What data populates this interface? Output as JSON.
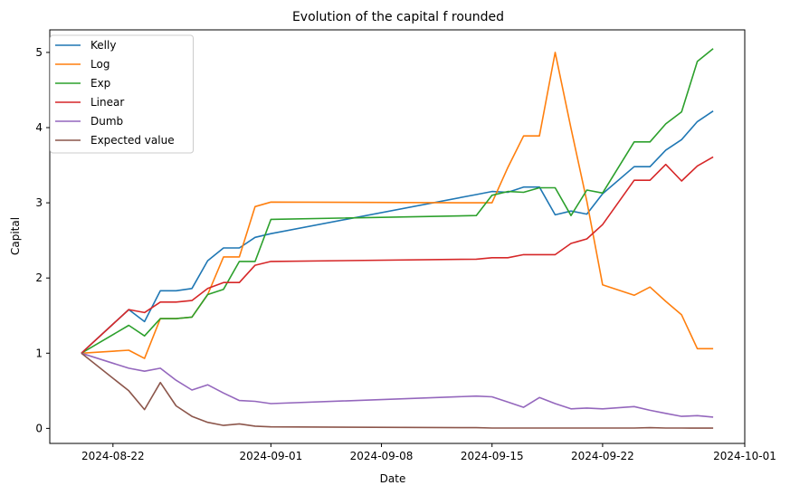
{
  "chart_data": {
    "type": "line",
    "title": "Evolution of the capital f rounded",
    "xlabel": "Date",
    "ylabel": "Capital",
    "xlim": [
      "2024-08-18",
      "2024-10-01"
    ],
    "ylim": [
      -0.2,
      5.3
    ],
    "x_ticks": [
      "2024-08-22",
      "2024-09-01",
      "2024-09-08",
      "2024-09-15",
      "2024-09-22",
      "2024-10-01"
    ],
    "y_ticks": [
      0,
      1,
      2,
      3,
      4,
      5
    ],
    "grid": false,
    "legend": "top-left",
    "x": [
      "2024-08-20",
      "2024-08-23",
      "2024-08-24",
      "2024-08-25",
      "2024-08-26",
      "2024-08-27",
      "2024-08-28",
      "2024-08-29",
      "2024-08-30",
      "2024-08-31",
      "2024-09-01",
      "2024-09-14",
      "2024-09-15",
      "2024-09-16",
      "2024-09-17",
      "2024-09-18",
      "2024-09-19",
      "2024-09-20",
      "2024-09-21",
      "2024-09-22",
      "2024-09-24",
      "2024-09-25",
      "2024-09-26",
      "2024-09-27",
      "2024-09-28",
      "2024-09-29"
    ],
    "series": [
      {
        "name": "Kelly",
        "color": "#1f77b4",
        "values": [
          1.0,
          1.58,
          1.42,
          1.83,
          1.83,
          1.86,
          2.23,
          2.4,
          2.4,
          2.54,
          2.59,
          3.11,
          3.15,
          3.14,
          3.21,
          3.21,
          2.84,
          2.89,
          2.85,
          3.12,
          3.48,
          3.48,
          3.7,
          3.84,
          4.08,
          4.22
        ]
      },
      {
        "name": "Log",
        "color": "#ff7f0e",
        "values": [
          1.0,
          1.04,
          0.93,
          1.46,
          1.46,
          1.48,
          1.78,
          2.28,
          2.28,
          2.95,
          3.01,
          3.0,
          3.0,
          3.47,
          3.89,
          3.89,
          5.0,
          3.99,
          3.02,
          1.91,
          1.77,
          1.88,
          1.69,
          1.51,
          1.06,
          1.06
        ]
      },
      {
        "name": "Exp",
        "color": "#2ca02c",
        "values": [
          1.0,
          1.37,
          1.23,
          1.46,
          1.46,
          1.48,
          1.78,
          1.85,
          2.22,
          2.22,
          2.78,
          2.83,
          3.1,
          3.15,
          3.14,
          3.2,
          3.2,
          2.83,
          3.17,
          3.13,
          3.81,
          3.81,
          4.05,
          4.21,
          4.88,
          5.05
        ]
      },
      {
        "name": "Linear",
        "color": "#d62728",
        "values": [
          1.0,
          1.58,
          1.54,
          1.68,
          1.68,
          1.7,
          1.86,
          1.94,
          1.94,
          2.17,
          2.22,
          2.25,
          2.27,
          2.27,
          2.31,
          2.31,
          2.31,
          2.46,
          2.52,
          2.71,
          3.3,
          3.3,
          3.51,
          3.29,
          3.49,
          3.61
        ]
      },
      {
        "name": "Dumb",
        "color": "#9467bd",
        "values": [
          1.0,
          0.8,
          0.76,
          0.8,
          0.64,
          0.51,
          0.58,
          0.47,
          0.37,
          0.36,
          0.33,
          0.43,
          0.42,
          0.35,
          0.28,
          0.41,
          0.33,
          0.26,
          0.27,
          0.26,
          0.29,
          0.24,
          0.2,
          0.16,
          0.17,
          0.15
        ]
      },
      {
        "name": "Expected value",
        "color": "#8c564b",
        "values": [
          1.0,
          0.5,
          0.25,
          0.61,
          0.3,
          0.16,
          0.08,
          0.04,
          0.06,
          0.03,
          0.02,
          0.01,
          0.005,
          0.005,
          0.005,
          0.005,
          0.005,
          0.005,
          0.005,
          0.005,
          0.005,
          0.01,
          0.005,
          0.005,
          0.003,
          0.003
        ]
      }
    ]
  }
}
